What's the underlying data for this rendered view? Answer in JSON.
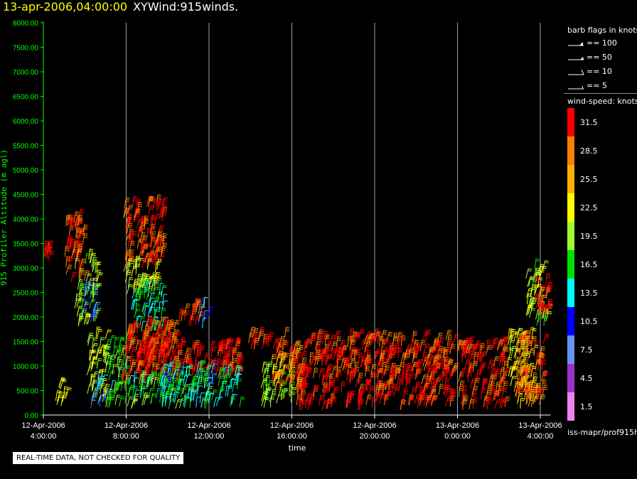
{
  "header": {
    "date": "13-apr-2006,04:00:00",
    "name": "XYWind:915winds."
  },
  "legend": {
    "barb_title": "barb flags in knots",
    "barbs": [
      {
        "label": "== 100"
      },
      {
        "label": "== 50"
      },
      {
        "label": "== 10"
      },
      {
        "label": "== 5"
      }
    ],
    "speed_title": "wind-speed: knots",
    "scale": [
      {
        "label": "31.5",
        "color": "#ff0000"
      },
      {
        "label": "28.5",
        "color": "#ff7f00"
      },
      {
        "label": "25.5",
        "color": "#ffb000"
      },
      {
        "label": "22.5",
        "color": "#ffff00"
      },
      {
        "label": "19.5",
        "color": "#a0ff30"
      },
      {
        "label": "16.5",
        "color": "#00e000"
      },
      {
        "label": "13.5",
        "color": "#00ffff"
      },
      {
        "label": "10.5",
        "color": "#0000ff"
      },
      {
        "label": "7.5",
        "color": "#6495ed"
      },
      {
        "label": "4.5",
        "color": "#9932cc"
      },
      {
        "label": "1.5",
        "color": "#ee82ee"
      }
    ],
    "filename": "iss-mapr/prof915h"
  },
  "disclaimer": "REAL-TIME DATA, NOT CHECKED FOR QUALITY",
  "chart_data": {
    "type": "scatter",
    "xlabel": "time",
    "ylabel": "915 Profiler Altitude (m agl)",
    "ylim": [
      0,
      8000
    ],
    "xlim_hours": [
      0,
      24.5
    ],
    "yticks": [
      "0.00",
      "500.00",
      "1000.00",
      "1500.00",
      "2000.00",
      "2500.00",
      "3000.00",
      "3500.00",
      "4000.00",
      "4500.00",
      "5000.00",
      "5500.00",
      "6000.00",
      "6500.00",
      "7000.00",
      "7500.00",
      "8000.00"
    ],
    "xticks": [
      {
        "date": "12-Apr-2006",
        "time": "4:00:00"
      },
      {
        "date": "12-Apr-2006",
        "time": "8:00:00"
      },
      {
        "date": "12-Apr-2006",
        "time": "12:00:00"
      },
      {
        "date": "12-Apr-2006",
        "time": "16:00:00"
      },
      {
        "date": "12-Apr-2006",
        "time": "20:00:00"
      },
      {
        "date": "13-Apr-2006",
        "time": "0:00:00"
      },
      {
        "date": "13-Apr-2006",
        "time": "4:00:00"
      }
    ],
    "grid_vertical": true,
    "clusters": [
      {
        "t0": 0.0,
        "t1": 0.3,
        "z0": 3100,
        "z1": 3400,
        "speed": 31
      },
      {
        "t0": 0.5,
        "t1": 1.1,
        "z0": 150,
        "z1": 600,
        "speed": 22
      },
      {
        "t0": 1.0,
        "t1": 2.0,
        "z0": 2700,
        "z1": 4000,
        "speed": 30
      },
      {
        "t0": 1.5,
        "t1": 2.6,
        "z0": 1800,
        "z1": 3200,
        "speed": 20
      },
      {
        "t0": 1.9,
        "t1": 2.6,
        "z0": 1900,
        "z1": 2600,
        "speed": 11
      },
      {
        "t0": 2.1,
        "t1": 3.0,
        "z0": 100,
        "z1": 1600,
        "speed": 21
      },
      {
        "t0": 2.3,
        "t1": 3.0,
        "z0": 100,
        "z1": 700,
        "speed": 12
      },
      {
        "t0": 3.0,
        "t1": 4.0,
        "z0": 100,
        "z1": 1500,
        "speed": 17
      },
      {
        "t0": 3.8,
        "t1": 5.8,
        "z0": 3000,
        "z1": 4300,
        "speed": 30
      },
      {
        "t0": 3.8,
        "t1": 5.5,
        "z0": 2400,
        "z1": 3100,
        "speed": 22
      },
      {
        "t0": 4.2,
        "t1": 5.8,
        "z0": 1700,
        "z1": 2600,
        "speed": 15
      },
      {
        "t0": 3.8,
        "t1": 6.5,
        "z0": 600,
        "z1": 1800,
        "speed": 30
      },
      {
        "t0": 4.5,
        "t1": 9.5,
        "z0": 700,
        "z1": 1400,
        "speed": 31
      },
      {
        "t0": 4.0,
        "t1": 8.0,
        "z0": 120,
        "z1": 700,
        "speed": 17
      },
      {
        "t0": 5.5,
        "t1": 9.5,
        "z0": 120,
        "z1": 900,
        "speed": 14
      },
      {
        "t0": 6.5,
        "t1": 7.5,
        "z0": 1800,
        "z1": 2300,
        "speed": 30
      },
      {
        "t0": 7.5,
        "t1": 8.0,
        "z0": 1700,
        "z1": 2200,
        "speed": 10
      },
      {
        "t0": 9.8,
        "t1": 11.7,
        "z0": 1300,
        "z1": 1600,
        "speed": 31
      },
      {
        "t0": 10.5,
        "t1": 12.0,
        "z0": 150,
        "z1": 1000,
        "speed": 20
      },
      {
        "t0": 11.0,
        "t1": 12.5,
        "z0": 500,
        "z1": 1300,
        "speed": 28
      },
      {
        "t0": 12.2,
        "t1": 19.8,
        "z0": 100,
        "z1": 1550,
        "speed": 31
      },
      {
        "t0": 20.0,
        "t1": 22.3,
        "z0": 100,
        "z1": 1400,
        "speed": 31
      },
      {
        "t0": 22.4,
        "t1": 23.7,
        "z0": 100,
        "z1": 1600,
        "speed": 23
      },
      {
        "t0": 22.8,
        "t1": 24.2,
        "z0": 200,
        "z1": 1500,
        "speed": 29
      },
      {
        "t0": 23.3,
        "t1": 24.3,
        "z0": 1800,
        "z1": 3000,
        "speed": 20
      },
      {
        "t0": 23.6,
        "t1": 24.4,
        "z0": 2000,
        "z1": 2700,
        "speed": 31
      }
    ]
  }
}
